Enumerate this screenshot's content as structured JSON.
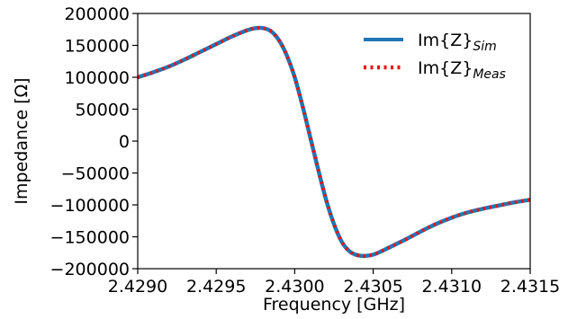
{
  "chart_data": {
    "type": "line",
    "title": "",
    "xlabel": "Frequency [GHz]",
    "ylabel": "Impedance [Ω]",
    "xlim": [
      2.429,
      2.4315
    ],
    "ylim": [
      -200000,
      200000
    ],
    "x_ticks": [
      2.429,
      2.4295,
      2.43,
      2.4305,
      2.431,
      2.4315
    ],
    "x_tick_labels": [
      "2.4290",
      "2.4295",
      "2.4300",
      "2.4305",
      "2.4310",
      "2.4315"
    ],
    "y_ticks": [
      -200000,
      -150000,
      -100000,
      -50000,
      0,
      50000,
      100000,
      150000,
      200000
    ],
    "y_tick_labels": [
      "−200000",
      "−150000",
      "−100000",
      "−50000",
      "0",
      "50000",
      "100000",
      "150000",
      "200000"
    ],
    "grid": false,
    "legend_position": "top-right",
    "series": [
      {
        "name": "Im{Z}",
        "name_sub": "Sim",
        "color": "#1f77b4",
        "style": "solid",
        "x": [
          2.429,
          2.4291,
          2.4292,
          2.4293,
          2.4294,
          2.4295,
          2.4296,
          2.4297,
          2.42975,
          2.4298,
          2.42985,
          2.4299,
          2.42995,
          2.43,
          2.43005,
          2.4301,
          2.43015,
          2.4302,
          2.43025,
          2.4303,
          2.43035,
          2.4304,
          2.43045,
          2.4305,
          2.43055,
          2.4306,
          2.4307,
          2.4308,
          2.4309,
          2.431,
          2.4311,
          2.4312,
          2.4313,
          2.4314,
          2.4315
        ],
        "y": [
          100000,
          108000,
          117000,
          128000,
          140000,
          152000,
          164000,
          174000,
          177000,
          177000,
          172000,
          158000,
          134000,
          100000,
          55000,
          5000,
          -45000,
          -92000,
          -130000,
          -158000,
          -173000,
          -179000,
          -180000,
          -178000,
          -173000,
          -167000,
          -155000,
          -142000,
          -130000,
          -120000,
          -112000,
          -106000,
          -101000,
          -96000,
          -92000
        ]
      },
      {
        "name": "Im{Z}",
        "name_sub": "Meas",
        "color": "#ee1111",
        "style": "dotted",
        "x": [
          2.429,
          2.4291,
          2.4292,
          2.4293,
          2.4294,
          2.4295,
          2.4296,
          2.4297,
          2.42975,
          2.4298,
          2.42985,
          2.4299,
          2.42995,
          2.43,
          2.43005,
          2.4301,
          2.43015,
          2.4302,
          2.43025,
          2.4303,
          2.43035,
          2.4304,
          2.43045,
          2.4305,
          2.43055,
          2.4306,
          2.4307,
          2.4308,
          2.4309,
          2.431,
          2.4311,
          2.4312,
          2.4313,
          2.4314,
          2.4315
        ],
        "y": [
          100000,
          108000,
          117000,
          128000,
          140000,
          152000,
          164000,
          174000,
          177000,
          177000,
          172000,
          158000,
          134000,
          100000,
          55000,
          5000,
          -45000,
          -92000,
          -130000,
          -158000,
          -173000,
          -179000,
          -180000,
          -178000,
          -173000,
          -167000,
          -155000,
          -142000,
          -130000,
          -120000,
          -112000,
          -106000,
          -101000,
          -96000,
          -92000
        ]
      }
    ]
  }
}
